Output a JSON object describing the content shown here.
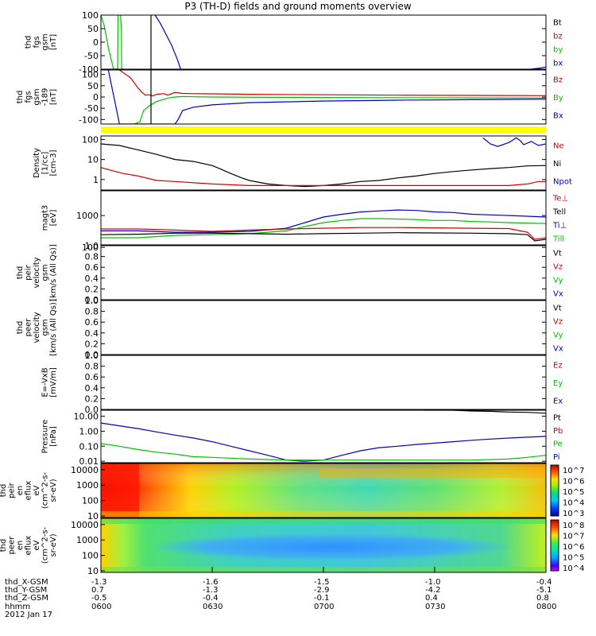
{
  "title": "P3 (TH-D) fields and ground moments overview",
  "colors": {
    "black": "#000000",
    "red": "#d40000",
    "green": "#00c000",
    "blue": "#0000c8",
    "yellow": "#ffff00"
  },
  "chart_data": [
    {
      "type": "line",
      "panel": "fgs",
      "ylabel": [
        "thd",
        "fgs",
        "gsm",
        "[nT]"
      ],
      "ylim": [
        -100,
        100
      ],
      "yticks": [
        "100",
        "50",
        "0",
        "-50",
        "-100"
      ],
      "legend": [
        {
          "label": "Bt",
          "color": "black"
        },
        {
          "label": "bz",
          "color": "red"
        },
        {
          "label": "by",
          "color": "green"
        },
        {
          "label": "bx",
          "color": "blue"
        }
      ],
      "series": [
        {
          "name": "by",
          "color": "green",
          "t": [
            0,
            0.9,
            2,
            3.4,
            4.5,
            4.6,
            5.3,
            5.5,
            5.6,
            6.2
          ],
          "v": [
            100,
            60,
            -20,
            -100,
            -100,
            100,
            100,
            40,
            -100,
            -100
          ]
        },
        {
          "name": "bx",
          "color": "blue",
          "t": [
            14.6,
            16,
            17.5,
            19,
            20.5,
            21.5
          ],
          "v": [
            100,
            70,
            30,
            -10,
            -60,
            -100
          ]
        },
        {
          "name": "bx",
          "color": "blue",
          "t": [
            116,
            118.5,
            120
          ],
          "v": [
            -100,
            -96,
            -92
          ]
        }
      ]
    },
    {
      "type": "line",
      "panel": "fgs-nT",
      "ylabel": [
        "thd",
        "fgs",
        "gsm",
        "-189",
        "[nT]"
      ],
      "ylim": [
        -120,
        120
      ],
      "yticks": [
        "100",
        "50",
        "0",
        "-50",
        "-100"
      ],
      "legend": [
        {
          "label": "Bz",
          "color": "red"
        },
        {
          "label": "By",
          "color": "green"
        },
        {
          "label": "Bx",
          "color": "blue"
        }
      ],
      "series": [
        {
          "name": "Bz",
          "color": "red",
          "t": [
            5,
            8,
            10,
            11,
            12,
            13,
            14,
            15,
            17,
            18,
            20,
            22,
            25,
            30,
            40,
            60,
            80,
            100,
            120
          ],
          "v": [
            120,
            85,
            40,
            22,
            8,
            10,
            5,
            12,
            15,
            8,
            20,
            16,
            15,
            14,
            12,
            10,
            8,
            7,
            6
          ]
        },
        {
          "name": "By",
          "color": "green",
          "t": [
            9,
            10.5,
            11.5,
            13,
            15,
            18,
            20,
            22,
            25,
            30,
            40,
            60,
            80,
            100,
            120
          ],
          "v": [
            -120,
            -110,
            -60,
            -40,
            -20,
            -5,
            0,
            2,
            1,
            0,
            -1,
            -2,
            -3,
            -4,
            -5
          ]
        },
        {
          "name": "Bx",
          "color": "blue",
          "t": [
            2,
            4,
            5,
            6,
            8,
            9,
            11,
            14,
            20,
            21,
            22,
            25,
            30,
            40,
            60,
            80,
            100,
            120
          ],
          "v": [
            120,
            -40,
            -120,
            -120,
            -120,
            -120,
            -120,
            -120,
            -120,
            -95,
            -60,
            -45,
            -35,
            -25,
            -18,
            -14,
            -12,
            -10
          ]
        }
      ]
    },
    {
      "type": "line",
      "panel": "density",
      "log": true,
      "ylabel": [
        "Density",
        "[1/cc]",
        "[cm-3]"
      ],
      "ylim": [
        0.3,
        150
      ],
      "yticks": [
        "100",
        "10",
        "1"
      ],
      "legend": [
        {
          "label": "Ne",
          "color": "red"
        },
        {
          "label": "Ni",
          "color": "black"
        },
        {
          "label": "Npot",
          "color": "blue"
        }
      ],
      "series": [
        {
          "name": "Ni",
          "color": "black",
          "t": [
            0,
            5,
            10,
            15,
            20,
            25,
            30,
            32,
            35,
            38,
            40,
            45,
            50,
            55,
            60,
            65,
            70,
            75,
            80,
            85,
            90,
            95,
            100,
            105,
            110,
            115,
            120
          ],
          "v": [
            60,
            50,
            30,
            18,
            10,
            8,
            5,
            3.5,
            2,
            1.2,
            0.9,
            0.6,
            0.5,
            0.45,
            0.5,
            0.6,
            0.8,
            0.9,
            1.2,
            1.5,
            2,
            2.5,
            3,
            3.5,
            4,
            4.8,
            5
          ]
        },
        {
          "name": "Ne",
          "color": "red",
          "t": [
            0,
            3,
            6,
            10,
            15,
            20,
            30,
            40,
            60,
            80,
            100,
            110,
            115,
            118,
            120
          ],
          "v": [
            4,
            2.8,
            2,
            1.5,
            0.9,
            0.8,
            0.6,
            0.5,
            0.5,
            0.5,
            0.5,
            0.5,
            0.6,
            0.8,
            0.8
          ]
        },
        {
          "name": "Npot",
          "color": "blue",
          "t": [
            103,
            105,
            107,
            110,
            112,
            113,
            114,
            116,
            118,
            120
          ],
          "v": [
            120,
            60,
            45,
            70,
            120,
            90,
            55,
            80,
            50,
            60
          ]
        }
      ]
    },
    {
      "type": "line",
      "panel": "temperature",
      "log": true,
      "ylabel": [
        "magt3",
        "[eV]"
      ],
      "ylim": [
        120,
        6000
      ],
      "yticks": [
        "1000",
        "100"
      ],
      "legend": [
        {
          "label": "Te⊥",
          "color": "red"
        },
        {
          "label": "Tell",
          "color": "black"
        },
        {
          "label": "Ti⊥",
          "color": "blue"
        },
        {
          "label": "Till",
          "color": "green"
        }
      ],
      "series": [
        {
          "name": "Ti⊥",
          "color": "blue",
          "t": [
            0,
            10,
            20,
            30,
            40,
            50,
            55,
            60,
            65,
            70,
            75,
            80,
            85,
            90,
            95,
            100,
            105,
            110,
            115,
            120
          ],
          "v": [
            330,
            330,
            300,
            300,
            320,
            400,
            600,
            900,
            1100,
            1300,
            1400,
            1500,
            1450,
            1300,
            1250,
            1100,
            1050,
            1000,
            950,
            900
          ]
        },
        {
          "name": "Till",
          "color": "green",
          "t": [
            0,
            10,
            20,
            30,
            40,
            50,
            55,
            60,
            65,
            70,
            75,
            80,
            85,
            90,
            95,
            100,
            105,
            110,
            115,
            120
          ],
          "v": [
            200,
            200,
            240,
            250,
            270,
            330,
            450,
            600,
            700,
            800,
            800,
            780,
            750,
            700,
            700,
            650,
            630,
            600,
            580,
            560
          ]
        },
        {
          "name": "Te⊥",
          "color": "red",
          "t": [
            0,
            10,
            20,
            30,
            40,
            50,
            60,
            70,
            80,
            90,
            100,
            110,
            115,
            117,
            120
          ],
          "v": [
            380,
            380,
            350,
            320,
            350,
            380,
            400,
            420,
            420,
            410,
            400,
            390,
            300,
            180,
            200
          ]
        },
        {
          "name": "Tell",
          "color": "black",
          "t": [
            0,
            10,
            20,
            30,
            40,
            50,
            60,
            70,
            80,
            90,
            100,
            110,
            115,
            117,
            120
          ],
          "v": [
            250,
            260,
            280,
            280,
            270,
            260,
            270,
            280,
            290,
            285,
            280,
            270,
            250,
            160,
            180
          ]
        }
      ]
    },
    {
      "type": "line",
      "panel": "peir-velocity",
      "ylabel": [
        "thd",
        "peir",
        "velocity",
        "gsm",
        "[km/s (All Qs)]"
      ],
      "ylim": [
        0,
        1
      ],
      "yticks": [
        "1.0",
        "0.8",
        "0.6",
        "0.4",
        "0.2",
        "0.0"
      ],
      "legend": [
        {
          "label": "Vt",
          "color": "black"
        },
        {
          "label": "Vz",
          "color": "red"
        },
        {
          "label": "Vy",
          "color": "green"
        },
        {
          "label": "Vx",
          "color": "blue"
        }
      ],
      "series": []
    },
    {
      "type": "line",
      "panel": "peer-velocity",
      "ylabel": [
        "thd",
        "peer",
        "velocity",
        "gsm",
        "[km/s (All Qs)]"
      ],
      "ylim": [
        0,
        1
      ],
      "yticks": [
        "1.0",
        "0.8",
        "0.6",
        "0.4",
        "0.2",
        "0.0"
      ],
      "legend": [
        {
          "label": "Vt",
          "color": "black"
        },
        {
          "label": "Vz",
          "color": "red"
        },
        {
          "label": "Vy",
          "color": "green"
        },
        {
          "label": "Vx",
          "color": "blue"
        }
      ],
      "series": []
    },
    {
      "type": "line",
      "panel": "efield",
      "ylabel": [
        "E=-VxB",
        "[mV/m]"
      ],
      "ylim": [
        0,
        1
      ],
      "yticks": [
        "1.0",
        "0.8",
        "0.6",
        "0.4",
        "0.2",
        "0.0"
      ],
      "legend": [
        {
          "label": "Ez",
          "color": "red"
        },
        {
          "label": "Ey",
          "color": "green"
        },
        {
          "label": "Ex",
          "color": "blue"
        }
      ],
      "series": []
    },
    {
      "type": "line",
      "panel": "pressure",
      "log": true,
      "ylabel": [
        "Pressure",
        "[nPa]"
      ],
      "ylim": [
        0.008,
        25
      ],
      "yticks": [
        "10.00",
        "1.00",
        "0.10",
        "0.01"
      ],
      "legend": [
        {
          "label": "Pt",
          "color": "black"
        },
        {
          "label": "Pb",
          "color": "red"
        },
        {
          "label": "Pe",
          "color": "green"
        },
        {
          "label": "Pi",
          "color": "blue"
        }
      ],
      "series": [
        {
          "name": "Pi",
          "color": "blue",
          "t": [
            0,
            5,
            10,
            15,
            20,
            25,
            30,
            35,
            40,
            45,
            50,
            55,
            60,
            65,
            70,
            75,
            80,
            85,
            90,
            95,
            100,
            105,
            110,
            115,
            120
          ],
          "v": [
            3.5,
            2.3,
            1.5,
            0.9,
            0.55,
            0.35,
            0.2,
            0.1,
            0.05,
            0.025,
            0.012,
            0.01,
            0.012,
            0.025,
            0.05,
            0.08,
            0.1,
            0.13,
            0.16,
            0.2,
            0.25,
            0.3,
            0.35,
            0.4,
            0.45
          ]
        },
        {
          "name": "Pe",
          "color": "green",
          "t": [
            0,
            5,
            10,
            15,
            20,
            25,
            30,
            35,
            40,
            45,
            50,
            60,
            70,
            80,
            90,
            100,
            110,
            115,
            120
          ],
          "v": [
            0.15,
            0.1,
            0.06,
            0.04,
            0.03,
            0.02,
            0.018,
            0.016,
            0.014,
            0.013,
            0.012,
            0.012,
            0.012,
            0.012,
            0.012,
            0.012,
            0.014,
            0.018,
            0.025
          ]
        },
        {
          "name": "Pt",
          "color": "black",
          "t": [
            87,
            95,
            100,
            105,
            110,
            115,
            120
          ],
          "v": [
            25,
            25,
            22,
            21,
            19,
            18,
            16
          ]
        }
      ]
    },
    {
      "type": "heatmap",
      "panel": "peir-eflux",
      "ylabel": [
        "thd",
        "peir",
        "en",
        "eflux",
        "eV",
        "(cm^2-s-",
        "sr-eV)"
      ],
      "yticks": [
        "10000",
        "1000",
        "100",
        "10"
      ],
      "colorbar": {
        "ticks": [
          "10^7",
          "10^6",
          "10^5",
          "10^4",
          "10^3"
        ]
      }
    },
    {
      "type": "heatmap",
      "panel": "peer-eflux",
      "ylabel": [
        "thd",
        "peer",
        "en",
        "eflux",
        "eV",
        "(cm^2-s-",
        "sr-eV)"
      ],
      "yticks": [
        "10000",
        "1000",
        "100",
        "10"
      ],
      "colorbar": {
        "ticks": [
          "10^8",
          "10^7",
          "10^6",
          "10^5",
          "10^4"
        ]
      }
    }
  ],
  "xaxis": {
    "row_labels": [
      "thd_X-GSM",
      "thd_Y-GSM",
      "thd_Z-GSM",
      "hhmm",
      "2012 Jan 17"
    ],
    "columns": [
      {
        "x": "-1.3",
        "y": "0.7",
        "z": "-0.5",
        "time": "0600"
      },
      {
        "x": "-1.6",
        "y": "-1.3",
        "z": "-0.4",
        "time": "0630"
      },
      {
        "x": "-1.5",
        "y": "-2.9",
        "z": "-0.1",
        "time": "0700"
      },
      {
        "x": "-1.0",
        "y": "-4.2",
        "z": "0.4",
        "time": "0730"
      },
      {
        "x": "-0.4",
        "y": "-5.1",
        "z": "0.8",
        "time": "0800"
      }
    ]
  }
}
